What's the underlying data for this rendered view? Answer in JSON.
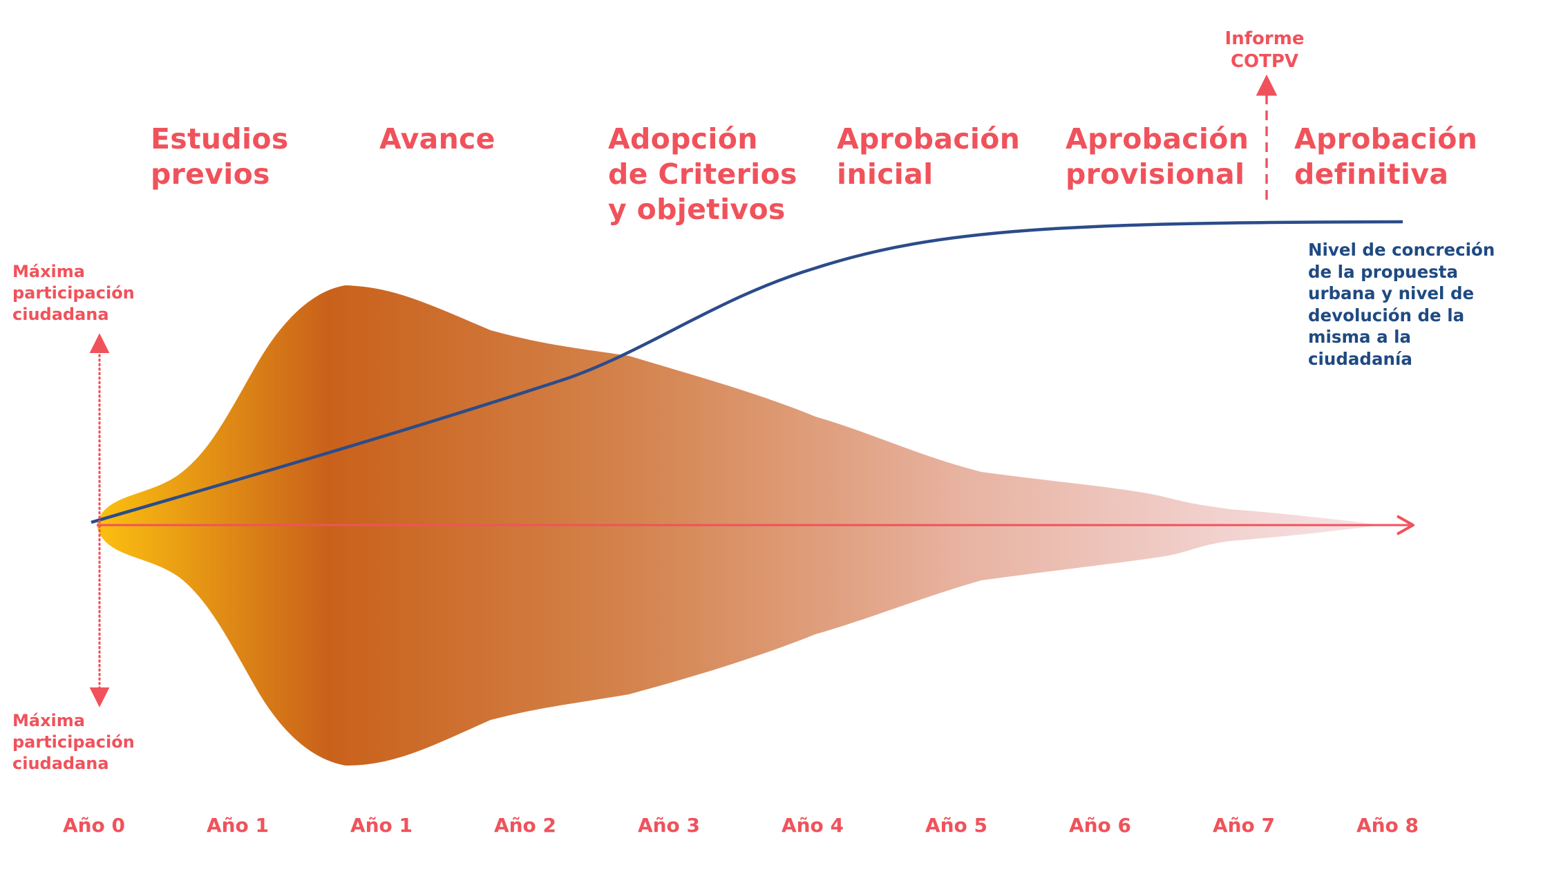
{
  "phases": [
    {
      "label": "Estudios\nprevios"
    },
    {
      "label": "Avance"
    },
    {
      "label": "Adopción\nde Criterios\ny objetivos"
    },
    {
      "label": "Aprobación\ninicial"
    },
    {
      "label": "Aprobación\nprovisional"
    },
    {
      "label": "Aprobación\ndefinitiva"
    }
  ],
  "side_labels": {
    "top": "Máxima\nparticipación\nciudadana",
    "bottom": "Máxima\nparticipación\nciudadana"
  },
  "informe_label": "Informe\nCOTPV",
  "concrecion_label": "Nivel de concreción\nde la propuesta\nurbana y nivel de\ndevolución de la\nmisma a la\nciudadanía",
  "years": [
    "Año 0",
    "Año 1",
    "Año 1",
    "Año 2",
    "Año 3",
    "Año 4",
    "Año 5",
    "Año 6",
    "Año 7",
    "Año 8"
  ],
  "colors": {
    "accent": "#f0525b",
    "curve": "#2b4c8a",
    "gradient": [
      "#fcc010",
      "#c9611a",
      "#d4844e",
      "#e8b4a3",
      "#f8e4ea"
    ]
  }
}
